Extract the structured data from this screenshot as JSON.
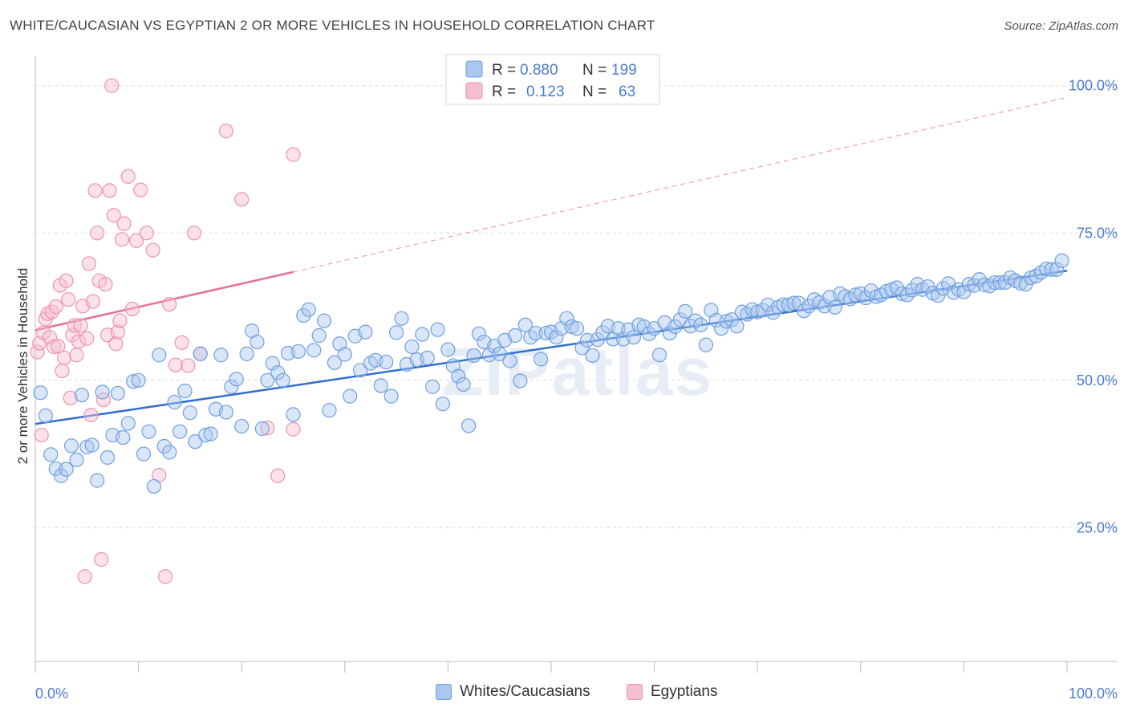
{
  "title": "WHITE/CAUCASIAN VS EGYPTIAN 2 OR MORE VEHICLES IN HOUSEHOLD CORRELATION CHART",
  "source": "Source: ZipAtlas.com",
  "watermark": "ZIPatlas",
  "colors": {
    "blue_fill": "#aac7f0",
    "blue_stroke": "#6f9fe0",
    "blue_line": "#2f6fd0",
    "pink_fill": "#f6bfd0",
    "pink_stroke": "#ee92b0",
    "pink_line": "#e8709a",
    "axis_text": "#4a7cd0",
    "grid": "#dddddd"
  },
  "legend": {
    "rows": [
      {
        "r_label": "R =",
        "r_value": "0.880",
        "n_label": "N =",
        "n_value": "199"
      },
      {
        "r_label": "R =",
        "r_value": "0.123",
        "n_label": "N =",
        "n_value": "63"
      }
    ]
  },
  "bottom_legend": {
    "items": [
      {
        "label": "Whites/Caucasians"
      },
      {
        "label": "Egyptians"
      }
    ]
  },
  "chart_data": {
    "type": "scatter",
    "title": "WHITE/CAUCASIAN VS EGYPTIAN 2 OR MORE VEHICLES IN HOUSEHOLD CORRELATION CHART",
    "xlabel": "",
    "ylabel": "2 or more Vehicles in Household",
    "x_tick_labels": [
      "0.0%",
      "100.0%"
    ],
    "y_tick_labels": [
      "25.0%",
      "50.0%",
      "75.0%",
      "100.0%"
    ],
    "y_ticks": [
      25,
      50,
      75,
      100
    ],
    "xlim": [
      0,
      100
    ],
    "ylim": [
      2.3,
      105
    ],
    "grid": true,
    "legend_position": "top-center",
    "series": [
      {
        "name": "Whites/Caucasians",
        "R": 0.88,
        "N": 199,
        "trend": {
          "x0": 0,
          "y0": 42.6,
          "x1": 100,
          "y1": 68.6
        },
        "points": [
          [
            0.5,
            47.9
          ],
          [
            1,
            44
          ],
          [
            1.5,
            37.4
          ],
          [
            2,
            35
          ],
          [
            2.5,
            33.8
          ],
          [
            3,
            34.9
          ],
          [
            3.5,
            38.9
          ],
          [
            4,
            36.5
          ],
          [
            4.5,
            47.5
          ],
          [
            5,
            38.7
          ],
          [
            5.5,
            39
          ],
          [
            6,
            33
          ],
          [
            6.5,
            48
          ],
          [
            7,
            36.9
          ],
          [
            7.5,
            40.7
          ],
          [
            8,
            47.8
          ],
          [
            8.5,
            40.3
          ],
          [
            9,
            42.7
          ],
          [
            9.5,
            49.8
          ],
          [
            10,
            50
          ],
          [
            10.5,
            37.5
          ],
          [
            11,
            41.3
          ],
          [
            11.5,
            32
          ],
          [
            12,
            54.3
          ],
          [
            12.5,
            38.8
          ],
          [
            13,
            37.8
          ],
          [
            13.5,
            46.3
          ],
          [
            14,
            41.3
          ],
          [
            14.5,
            48.2
          ],
          [
            15,
            44.5
          ],
          [
            15.5,
            39.6
          ],
          [
            16,
            54.5
          ],
          [
            16.5,
            40.7
          ],
          [
            17,
            40.9
          ],
          [
            17.5,
            45.1
          ],
          [
            18,
            54.3
          ],
          [
            18.5,
            44.6
          ],
          [
            19,
            48.9
          ],
          [
            19.5,
            50.2
          ],
          [
            20,
            42.2
          ],
          [
            20.5,
            54.5
          ],
          [
            21,
            58.4
          ],
          [
            21.5,
            56.5
          ],
          [
            22,
            41.8
          ],
          [
            22.5,
            50
          ],
          [
            23,
            52.9
          ],
          [
            23.5,
            51.3
          ],
          [
            24,
            50
          ],
          [
            24.5,
            54.6
          ],
          [
            25,
            44.2
          ],
          [
            25.5,
            54.9
          ],
          [
            26,
            61
          ],
          [
            26.5,
            62
          ],
          [
            27,
            55.1
          ],
          [
            27.5,
            57.6
          ],
          [
            28,
            60.1
          ],
          [
            28.5,
            44.9
          ],
          [
            29,
            53
          ],
          [
            29.5,
            56.2
          ],
          [
            30,
            54.4
          ],
          [
            30.5,
            47.3
          ],
          [
            31,
            57.5
          ],
          [
            31.5,
            51.7
          ],
          [
            32,
            58.2
          ],
          [
            32.5,
            52.9
          ],
          [
            33,
            53.4
          ],
          [
            33.5,
            49.1
          ],
          [
            34,
            53.1
          ],
          [
            34.5,
            47.3
          ],
          [
            35,
            58.1
          ],
          [
            35.5,
            60.5
          ],
          [
            36,
            52.7
          ],
          [
            36.5,
            55.7
          ],
          [
            37,
            53.5
          ],
          [
            37.5,
            57.8
          ],
          [
            38,
            53.8
          ],
          [
            38.5,
            48.9
          ],
          [
            39,
            58.6
          ],
          [
            39.5,
            46
          ],
          [
            40,
            55.2
          ],
          [
            40.5,
            52.5
          ],
          [
            41,
            50.7
          ],
          [
            41.5,
            49.3
          ],
          [
            42,
            42.3
          ],
          [
            42.5,
            54.2
          ],
          [
            43,
            57.9
          ],
          [
            43.5,
            56.5
          ],
          [
            44,
            54.3
          ],
          [
            44.5,
            55.8
          ],
          [
            45,
            54.5
          ],
          [
            45.5,
            56.8
          ],
          [
            46,
            53.3
          ],
          [
            46.5,
            57.6
          ],
          [
            47,
            49.9
          ],
          [
            47.5,
            59.4
          ],
          [
            48,
            57.3
          ],
          [
            48.5,
            58
          ],
          [
            49,
            53.6
          ],
          [
            49.5,
            58
          ],
          [
            50,
            58.2
          ],
          [
            50.5,
            57.3
          ],
          [
            51,
            58.8
          ],
          [
            51.5,
            60.5
          ],
          [
            52,
            59.1
          ],
          [
            52.5,
            58.8
          ],
          [
            53,
            55.5
          ],
          [
            53.5,
            56.8
          ],
          [
            54,
            54.2
          ],
          [
            54.5,
            56.9
          ],
          [
            55,
            58.1
          ],
          [
            55.5,
            59.2
          ],
          [
            56,
            57
          ],
          [
            56.5,
            58.8
          ],
          [
            57,
            57
          ],
          [
            57.5,
            58.6
          ],
          [
            58,
            57.3
          ],
          [
            58.5,
            59.4
          ],
          [
            59,
            59.1
          ],
          [
            59.5,
            57.9
          ],
          [
            60,
            58.8
          ],
          [
            60.5,
            54.3
          ],
          [
            61,
            59.8
          ],
          [
            61.5,
            58
          ],
          [
            62,
            59.1
          ],
          [
            62.5,
            60.3
          ],
          [
            63,
            61.7
          ],
          [
            63.5,
            59.2
          ],
          [
            64,
            60.1
          ],
          [
            64.5,
            59.4
          ],
          [
            65,
            56
          ],
          [
            65.5,
            61.9
          ],
          [
            66,
            60.2
          ],
          [
            66.5,
            58.8
          ],
          [
            67,
            60
          ],
          [
            67.5,
            60.3
          ],
          [
            68,
            59.2
          ],
          [
            68.5,
            61.6
          ],
          [
            69,
            61.2
          ],
          [
            69.5,
            62
          ],
          [
            70,
            61.6
          ],
          [
            70.5,
            61.9
          ],
          [
            71,
            62.8
          ],
          [
            71.5,
            61.5
          ],
          [
            72,
            62.4
          ],
          [
            72.5,
            62.8
          ],
          [
            73,
            62.8
          ],
          [
            73.5,
            63.1
          ],
          [
            74,
            63.1
          ],
          [
            74.5,
            61.8
          ],
          [
            75,
            62.6
          ],
          [
            75.5,
            63.7
          ],
          [
            76,
            63.2
          ],
          [
            76.5,
            62.6
          ],
          [
            77,
            64.1
          ],
          [
            77.5,
            62.4
          ],
          [
            78,
            64.7
          ],
          [
            78.5,
            64.2
          ],
          [
            79,
            63.8
          ],
          [
            79.5,
            64.5
          ],
          [
            80,
            64.7
          ],
          [
            80.5,
            64
          ],
          [
            81,
            65.2
          ],
          [
            81.5,
            64.2
          ],
          [
            82,
            64.5
          ],
          [
            82.5,
            65.1
          ],
          [
            83,
            65.4
          ],
          [
            83.5,
            65.7
          ],
          [
            84,
            64.7
          ],
          [
            84.5,
            64.5
          ],
          [
            85,
            65.3
          ],
          [
            85.5,
            66.3
          ],
          [
            86,
            65.4
          ],
          [
            86.5,
            65.9
          ],
          [
            87,
            64.8
          ],
          [
            87.5,
            64.4
          ],
          [
            88,
            65.6
          ],
          [
            88.5,
            66.4
          ],
          [
            89,
            64.9
          ],
          [
            89.5,
            65.4
          ],
          [
            90,
            65
          ],
          [
            90.5,
            66.3
          ],
          [
            91,
            66.1
          ],
          [
            91.5,
            67.1
          ],
          [
            92,
            66.2
          ],
          [
            92.5,
            66
          ],
          [
            93,
            66.6
          ],
          [
            93.5,
            66.6
          ],
          [
            94,
            66.6
          ],
          [
            94.5,
            67.4
          ],
          [
            95,
            66.9
          ],
          [
            95.5,
            66.5
          ],
          [
            96,
            66.3
          ],
          [
            96.5,
            67.4
          ],
          [
            97,
            67.7
          ],
          [
            97.5,
            68.3
          ],
          [
            98,
            68.9
          ],
          [
            98.5,
            68.8
          ],
          [
            99,
            68.8
          ],
          [
            99.5,
            70.3
          ]
        ]
      },
      {
        "name": "Egyptians",
        "R": 0.123,
        "N": 63,
        "trend": {
          "x0": 0,
          "y0": 58.5,
          "x1": 100,
          "y1": 98
        },
        "trend_solid_until_x": 25,
        "points": [
          [
            0.2,
            54.8
          ],
          [
            0.4,
            56.3
          ],
          [
            0.6,
            40.7
          ],
          [
            0.8,
            58.1
          ],
          [
            1,
            60.4
          ],
          [
            1.2,
            61.3
          ],
          [
            1.4,
            57.3
          ],
          [
            1.6,
            61.6
          ],
          [
            1.8,
            55.7
          ],
          [
            2,
            62.5
          ],
          [
            2.2,
            55.8
          ],
          [
            2.4,
            66.1
          ],
          [
            2.6,
            51.6
          ],
          [
            2.8,
            53.8
          ],
          [
            3,
            66.9
          ],
          [
            3.2,
            63.7
          ],
          [
            3.4,
            47
          ],
          [
            3.6,
            57.7
          ],
          [
            3.8,
            59.3
          ],
          [
            4,
            54.3
          ],
          [
            4.2,
            56.6
          ],
          [
            4.4,
            59.3
          ],
          [
            4.6,
            62.6
          ],
          [
            4.8,
            16.7
          ],
          [
            5,
            57.1
          ],
          [
            5.2,
            69.8
          ],
          [
            5.4,
            44.1
          ],
          [
            5.6,
            63.4
          ],
          [
            5.8,
            82.2
          ],
          [
            6,
            75
          ],
          [
            6.2,
            66.9
          ],
          [
            6.4,
            19.6
          ],
          [
            6.6,
            46.7
          ],
          [
            6.8,
            66.3
          ],
          [
            7,
            57.7
          ],
          [
            7.2,
            82.2
          ],
          [
            7.4,
            100
          ],
          [
            7.6,
            78
          ],
          [
            7.8,
            56.2
          ],
          [
            8,
            58.2
          ],
          [
            8.2,
            60.1
          ],
          [
            8.4,
            73.9
          ],
          [
            8.6,
            76.6
          ],
          [
            9,
            84.6
          ],
          [
            9.4,
            62.1
          ],
          [
            9.8,
            73.7
          ],
          [
            10.2,
            82.3
          ],
          [
            10.8,
            75
          ],
          [
            11.4,
            72.1
          ],
          [
            12,
            33.9
          ],
          [
            12.6,
            16.7
          ],
          [
            13,
            62.9
          ],
          [
            13.6,
            52.6
          ],
          [
            14.2,
            56.4
          ],
          [
            14.8,
            52.5
          ],
          [
            15.4,
            75
          ],
          [
            16,
            54.5
          ],
          [
            18.5,
            92.3
          ],
          [
            20,
            80.7
          ],
          [
            22.5,
            41.9
          ],
          [
            23.5,
            33.8
          ],
          [
            25,
            88.3
          ],
          [
            25,
            41.7
          ]
        ]
      }
    ]
  }
}
